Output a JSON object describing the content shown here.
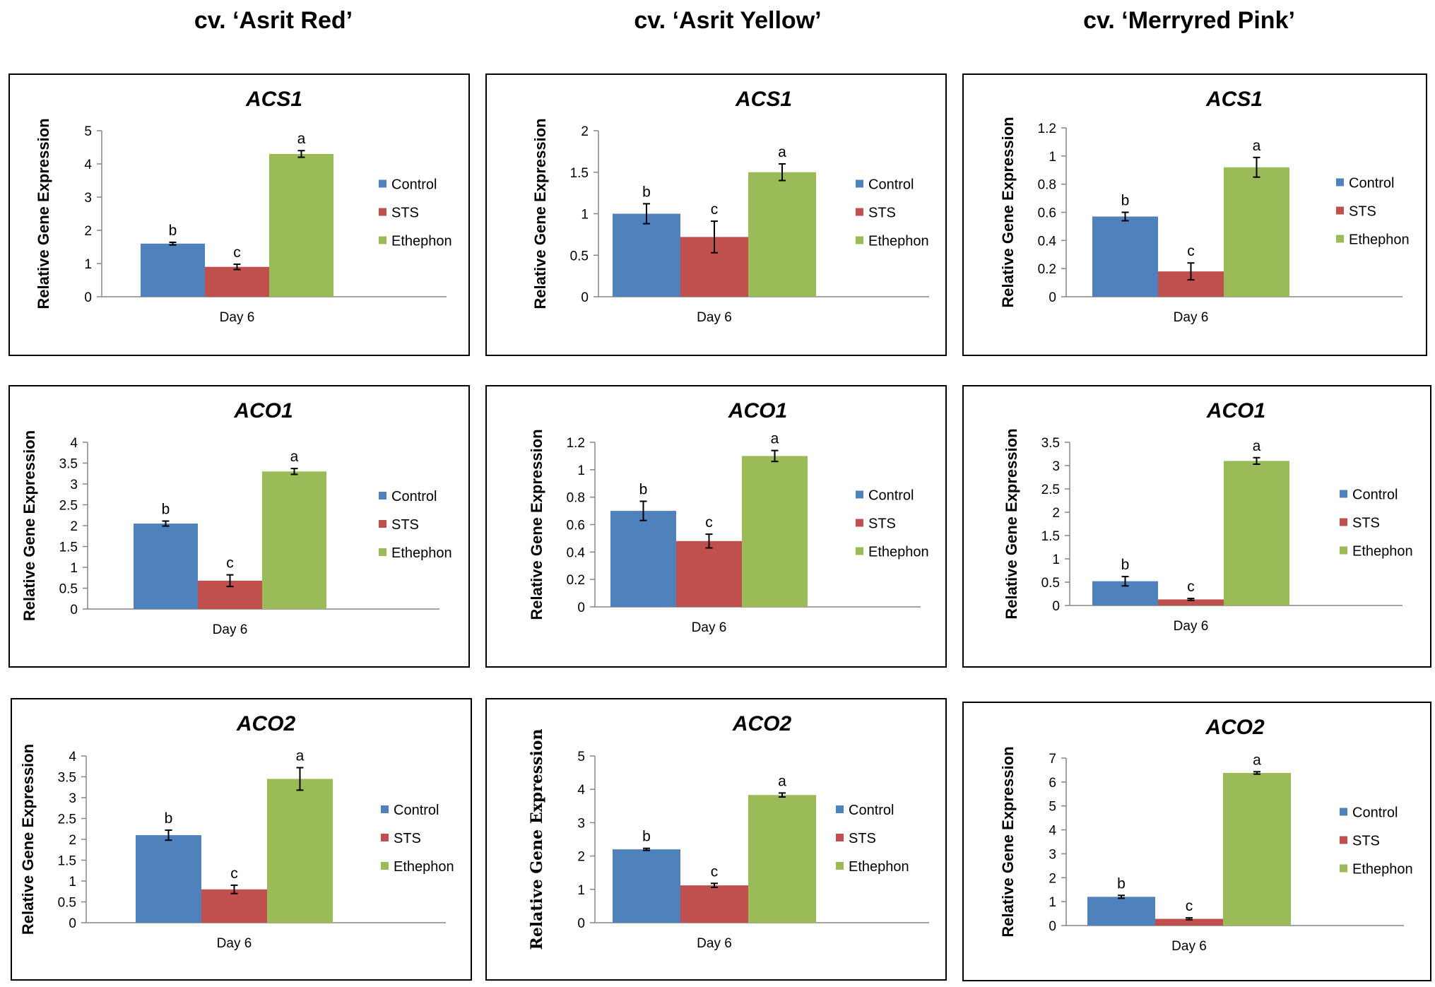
{
  "column_titles": [
    "cv. ‘Asrit Red’",
    "cv. ‘Asrit Yellow’",
    "cv. ‘Merryred Pink’"
  ],
  "colors": {
    "Control": "#4f81bd",
    "STS": "#c0504d",
    "Ethephon": "#9bbb59"
  },
  "chart_data": [
    {
      "type": "bar",
      "title": "ACS1",
      "cultivar": "cv. ‘Asrit Red’",
      "categories": [
        "Day 6"
      ],
      "xlabel": "Day 6",
      "ylabel": "Relative Gene Expression",
      "ylim": [
        0,
        5
      ],
      "yticks": [
        "0",
        "1",
        "2",
        "3",
        "4",
        "5"
      ],
      "series": [
        {
          "name": "Control",
          "values": [
            1.6
          ],
          "error": [
            0.04
          ],
          "letter": "b"
        },
        {
          "name": "STS",
          "values": [
            0.9
          ],
          "error": [
            0.08
          ],
          "letter": "c"
        },
        {
          "name": "Ethephon",
          "values": [
            4.3
          ],
          "error": [
            0.1
          ],
          "letter": "a"
        }
      ]
    },
    {
      "type": "bar",
      "title": "ACS1",
      "cultivar": "cv. ‘Asrit Yellow’",
      "categories": [
        "Day 6"
      ],
      "xlabel": "Day 6",
      "ylabel": "Relative Gene Expression",
      "ylim": [
        0,
        2
      ],
      "yticks": [
        "0",
        "0.5",
        "1",
        "1.5",
        "2"
      ],
      "series": [
        {
          "name": "Control",
          "values": [
            1.0
          ],
          "error": [
            0.12
          ],
          "letter": "b"
        },
        {
          "name": "STS",
          "values": [
            0.72
          ],
          "error": [
            0.19
          ],
          "letter": "c"
        },
        {
          "name": "Ethephon",
          "values": [
            1.5
          ],
          "error": [
            0.1
          ],
          "letter": "a"
        }
      ]
    },
    {
      "type": "bar",
      "title": "ACS1",
      "cultivar": "cv. ‘Merryred Pink’",
      "categories": [
        "Day 6"
      ],
      "xlabel": "Day 6",
      "ylabel": "Relative Gene Expression",
      "ylim": [
        0,
        1.2
      ],
      "yticks": [
        "0",
        "0.2",
        "0.4",
        "0.6",
        "0.8",
        "1",
        "1.2"
      ],
      "series": [
        {
          "name": "Control",
          "values": [
            0.57
          ],
          "error": [
            0.03
          ],
          "letter": "b"
        },
        {
          "name": "STS",
          "values": [
            0.18
          ],
          "error": [
            0.06
          ],
          "letter": "c"
        },
        {
          "name": "Ethephon",
          "values": [
            0.92
          ],
          "error": [
            0.07
          ],
          "letter": "a"
        }
      ]
    },
    {
      "type": "bar",
      "title": "ACO1",
      "cultivar": "cv. ‘Asrit Red’",
      "categories": [
        "Day 6"
      ],
      "xlabel": "Day 6",
      "ylabel": "Relative Gene Expression",
      "ylim": [
        0,
        4
      ],
      "yticks": [
        "0",
        "0.5",
        "1",
        "1.5",
        "2",
        "2.5",
        "3",
        "3.5",
        "4"
      ],
      "series": [
        {
          "name": "Control",
          "values": [
            2.05
          ],
          "error": [
            0.06
          ],
          "letter": "b"
        },
        {
          "name": "STS",
          "values": [
            0.68
          ],
          "error": [
            0.14
          ],
          "letter": "c"
        },
        {
          "name": "Ethephon",
          "values": [
            3.3
          ],
          "error": [
            0.07
          ],
          "letter": "a"
        }
      ]
    },
    {
      "type": "bar",
      "title": "ACO1",
      "cultivar": "cv. ‘Asrit Yellow’",
      "categories": [
        "Day 6"
      ],
      "xlabel": "Day 6",
      "ylabel": "Relative Gene Expression",
      "ylim": [
        0,
        1.2
      ],
      "yticks": [
        "0",
        "0.2",
        "0.4",
        "0.6",
        "0.8",
        "1",
        "1.2"
      ],
      "series": [
        {
          "name": "Control",
          "values": [
            0.7
          ],
          "error": [
            0.07
          ],
          "letter": "b"
        },
        {
          "name": "STS",
          "values": [
            0.48
          ],
          "error": [
            0.05
          ],
          "letter": "c"
        },
        {
          "name": "Ethephon",
          "values": [
            1.1
          ],
          "error": [
            0.04
          ],
          "letter": "a"
        }
      ]
    },
    {
      "type": "bar",
      "title": "ACO1",
      "cultivar": "cv. ‘Merryred Pink’",
      "categories": [
        "Day 6"
      ],
      "xlabel": "Day 6",
      "ylabel": "Relative Gene Expression",
      "ylim": [
        0,
        3.5
      ],
      "yticks": [
        "0",
        "0.5",
        "1",
        "1.5",
        "2",
        "2.5",
        "3",
        "3.5"
      ],
      "series": [
        {
          "name": "Control",
          "values": [
            0.52
          ],
          "error": [
            0.1
          ],
          "letter": "b"
        },
        {
          "name": "STS",
          "values": [
            0.13
          ],
          "error": [
            0.02
          ],
          "letter": "c"
        },
        {
          "name": "Ethephon",
          "values": [
            3.1
          ],
          "error": [
            0.07
          ],
          "letter": "a"
        }
      ]
    },
    {
      "type": "bar",
      "title": "ACO2",
      "cultivar": "cv. ‘Asrit Red’",
      "categories": [
        "Day 6"
      ],
      "xlabel": "Day 6",
      "ylabel": "Relative Gene Expression",
      "ylim": [
        0,
        4
      ],
      "yticks": [
        "0",
        "0.5",
        "1",
        "1.5",
        "2",
        "2.5",
        "3",
        "3.5",
        "4"
      ],
      "series": [
        {
          "name": "Control",
          "values": [
            2.1
          ],
          "error": [
            0.12
          ],
          "letter": "b"
        },
        {
          "name": "STS",
          "values": [
            0.8
          ],
          "error": [
            0.1
          ],
          "letter": "c"
        },
        {
          "name": "Ethephon",
          "values": [
            3.45
          ],
          "error": [
            0.27
          ],
          "letter": "a"
        }
      ]
    },
    {
      "type": "bar",
      "title": "ACO2",
      "cultivar": "cv. ‘Asrit Yellow’",
      "categories": [
        "Day 6"
      ],
      "xlabel": "Day 6",
      "ylabel": "Relative Gene Expression",
      "ylabel_serif": true,
      "ylim": [
        0,
        5
      ],
      "yticks": [
        "0",
        "1",
        "2",
        "3",
        "4",
        "5"
      ],
      "series": [
        {
          "name": "Control",
          "values": [
            2.2
          ],
          "error": [
            0.03
          ],
          "letter": "b"
        },
        {
          "name": "STS",
          "values": [
            1.12
          ],
          "error": [
            0.06
          ],
          "letter": "c"
        },
        {
          "name": "Ethephon",
          "values": [
            3.83
          ],
          "error": [
            0.06
          ],
          "letter": "a"
        }
      ]
    },
    {
      "type": "bar",
      "title": "ACO2",
      "cultivar": "cv. ‘Merryred Pink’",
      "categories": [
        "Day 6"
      ],
      "xlabel": "Day 6",
      "ylabel": "Relative Gene Expression",
      "ylim": [
        0,
        7
      ],
      "yticks": [
        "0",
        "1",
        "2",
        "3",
        "4",
        "5",
        "6",
        "7"
      ],
      "series": [
        {
          "name": "Control",
          "values": [
            1.2
          ],
          "error": [
            0.06
          ],
          "letter": "b"
        },
        {
          "name": "STS",
          "values": [
            0.28
          ],
          "error": [
            0.04
          ],
          "letter": "c"
        },
        {
          "name": "Ethephon",
          "values": [
            6.38
          ],
          "error": [
            0.05
          ],
          "letter": "a"
        }
      ]
    }
  ]
}
